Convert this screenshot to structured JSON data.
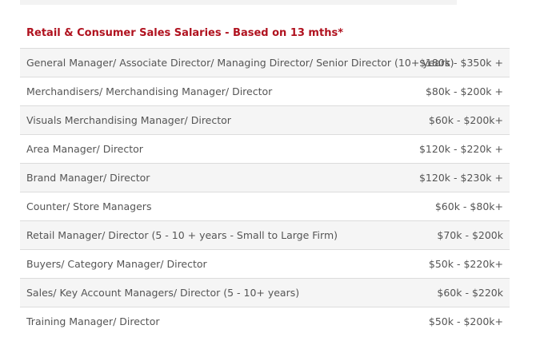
{
  "section_title": "Retail & Consumer Sales Salaries - Based on 13 mths*",
  "rows": [
    {
      "role": "General Manager/ Associate Director/ Managing Director/ Senior Director (10+ years)",
      "range": "$180k - $350k +"
    },
    {
      "role": "Merchandisers/ Merchandising Manager/ Director",
      "range": "$80k - $200k +"
    },
    {
      "role": "Visuals Merchandising Manager/ Director",
      "range": "$60k - $200k+"
    },
    {
      "role": "Area Manager/ Director",
      "range": "$120k - $220k +"
    },
    {
      "role": "Brand Manager/ Director",
      "range": "$120k - $230k +"
    },
    {
      "role": "Counter/ Store Managers",
      "range": "$60k - $80k+"
    },
    {
      "role": "Retail Manager/ Director (5 - 10 + years - Small to Large Firm)",
      "range": "$70k - $200k"
    },
    {
      "role": "Buyers/ Category Manager/ Director",
      "range": "$50k - $220k+"
    },
    {
      "role": "Sales/ Key Account Managers/ Director (5 - 10+ years)",
      "range": "$60k - $220k"
    },
    {
      "role": "Training Manager/ Director",
      "range": "$50k - $200k+"
    }
  ]
}
